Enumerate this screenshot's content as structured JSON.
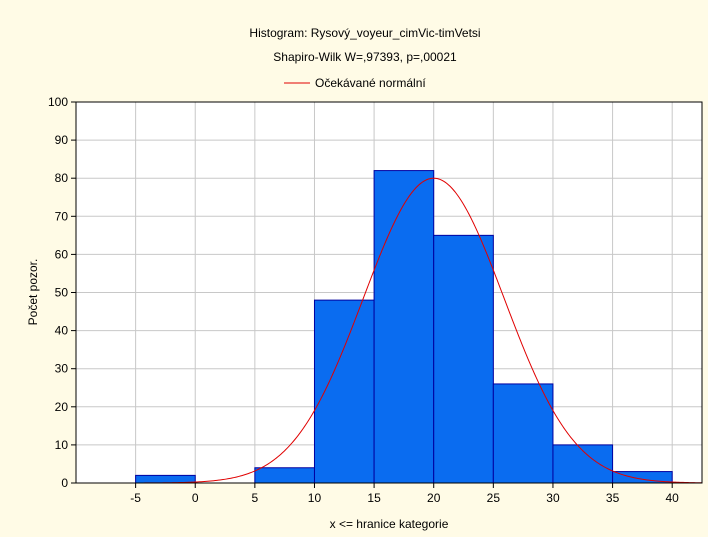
{
  "chart_data": {
    "type": "bar",
    "title": "Histogram: Rysový_voyeur_cimVic-timVetsi",
    "subtitle": "Shapiro-Wilk W=,97393, p=,00021",
    "legend": [
      {
        "label": "Očekávané normální",
        "color": "#e00000"
      }
    ],
    "legend_placement": "top-center",
    "xlabel": "x <= hranice kategorie",
    "ylabel": "Počet pozor.",
    "xlim": [
      -10,
      42.5
    ],
    "ylim": [
      0,
      100
    ],
    "xticks": [
      -5,
      0,
      5,
      10,
      15,
      20,
      25,
      30,
      35,
      40
    ],
    "yticks": [
      0,
      10,
      20,
      30,
      40,
      50,
      60,
      70,
      80,
      90,
      100
    ],
    "grid": true,
    "bins": [
      {
        "from": -5,
        "to": 0,
        "value": 2
      },
      {
        "from": 0,
        "to": 5,
        "value": 0
      },
      {
        "from": 5,
        "to": 10,
        "value": 4
      },
      {
        "from": 10,
        "to": 15,
        "value": 48
      },
      {
        "from": 15,
        "to": 20,
        "value": 82
      },
      {
        "from": 20,
        "to": 25,
        "value": 65
      },
      {
        "from": 25,
        "to": 30,
        "value": 26
      },
      {
        "from": 30,
        "to": 35,
        "value": 10
      },
      {
        "from": 35,
        "to": 40,
        "value": 3
      }
    ],
    "bar_color": "#0a6cf0",
    "bar_edge_color": "#0000a0",
    "normal_curve": {
      "mean": 20,
      "sd": 5.9,
      "peak": 80,
      "color": "#e00000"
    }
  }
}
